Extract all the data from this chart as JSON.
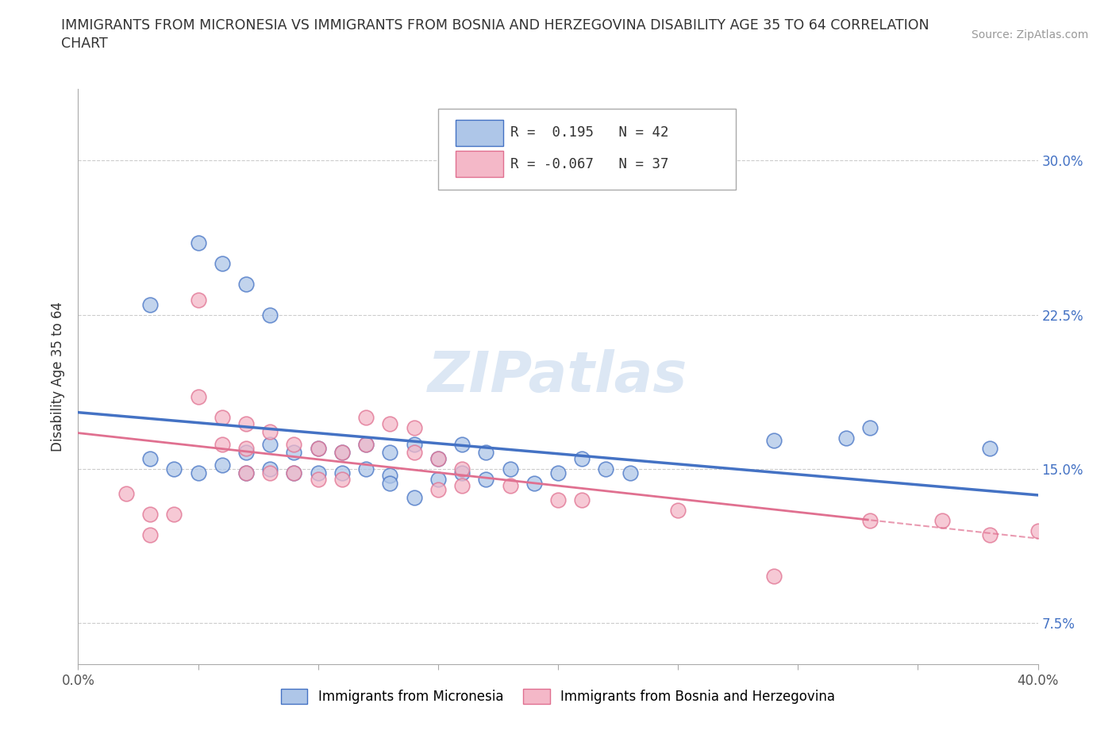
{
  "title_line1": "IMMIGRANTS FROM MICRONESIA VS IMMIGRANTS FROM BOSNIA AND HERZEGOVINA DISABILITY AGE 35 TO 64 CORRELATION",
  "title_line2": "CHART",
  "source": "Source: ZipAtlas.com",
  "ylabel": "Disability Age 35 to 64",
  "xlim": [
    0.0,
    0.4
  ],
  "ylim": [
    0.055,
    0.335
  ],
  "xticks": [
    0.0,
    0.05,
    0.1,
    0.15,
    0.2,
    0.25,
    0.3,
    0.35,
    0.4
  ],
  "xtick_labels": [
    "0.0%",
    "",
    "",
    "",
    "",
    "",
    "",
    "",
    "40.0%"
  ],
  "yticks": [
    0.075,
    0.15,
    0.225,
    0.3
  ],
  "ytick_labels": [
    "7.5%",
    "15.0%",
    "22.5%",
    "30.0%"
  ],
  "blue_r": 0.195,
  "blue_n": 42,
  "pink_r": -0.067,
  "pink_n": 37,
  "blue_color": "#aec6e8",
  "blue_line_color": "#4472c4",
  "pink_color": "#f4b8c8",
  "pink_line_color": "#e07090",
  "blue_x": [
    0.03,
    0.05,
    0.06,
    0.07,
    0.08,
    0.03,
    0.04,
    0.05,
    0.06,
    0.07,
    0.07,
    0.08,
    0.08,
    0.09,
    0.09,
    0.1,
    0.1,
    0.11,
    0.11,
    0.12,
    0.12,
    0.13,
    0.13,
    0.14,
    0.15,
    0.15,
    0.16,
    0.16,
    0.17,
    0.17,
    0.18,
    0.19,
    0.2,
    0.21,
    0.22,
    0.23,
    0.13,
    0.14,
    0.29,
    0.32,
    0.33,
    0.38
  ],
  "blue_y": [
    0.23,
    0.26,
    0.25,
    0.24,
    0.225,
    0.155,
    0.15,
    0.148,
    0.152,
    0.158,
    0.148,
    0.162,
    0.15,
    0.158,
    0.148,
    0.16,
    0.148,
    0.158,
    0.148,
    0.162,
    0.15,
    0.158,
    0.147,
    0.162,
    0.155,
    0.145,
    0.162,
    0.148,
    0.158,
    0.145,
    0.15,
    0.143,
    0.148,
    0.155,
    0.15,
    0.148,
    0.143,
    0.136,
    0.164,
    0.165,
    0.17,
    0.16
  ],
  "pink_x": [
    0.02,
    0.03,
    0.03,
    0.04,
    0.05,
    0.05,
    0.06,
    0.06,
    0.07,
    0.07,
    0.07,
    0.08,
    0.08,
    0.09,
    0.09,
    0.1,
    0.1,
    0.11,
    0.11,
    0.12,
    0.12,
    0.13,
    0.14,
    0.14,
    0.15,
    0.15,
    0.16,
    0.16,
    0.18,
    0.2,
    0.21,
    0.25,
    0.29,
    0.33,
    0.36,
    0.38,
    0.4
  ],
  "pink_y": [
    0.138,
    0.128,
    0.118,
    0.128,
    0.232,
    0.185,
    0.175,
    0.162,
    0.172,
    0.16,
    0.148,
    0.168,
    0.148,
    0.162,
    0.148,
    0.16,
    0.145,
    0.158,
    0.145,
    0.175,
    0.162,
    0.172,
    0.17,
    0.158,
    0.155,
    0.14,
    0.15,
    0.142,
    0.142,
    0.135,
    0.135,
    0.13,
    0.098,
    0.125,
    0.125,
    0.118,
    0.12
  ],
  "watermark": "ZIPatlas",
  "legend_blue_label": "Immigrants from Micronesia",
  "legend_pink_label": "Immigrants from Bosnia and Herzegovina"
}
